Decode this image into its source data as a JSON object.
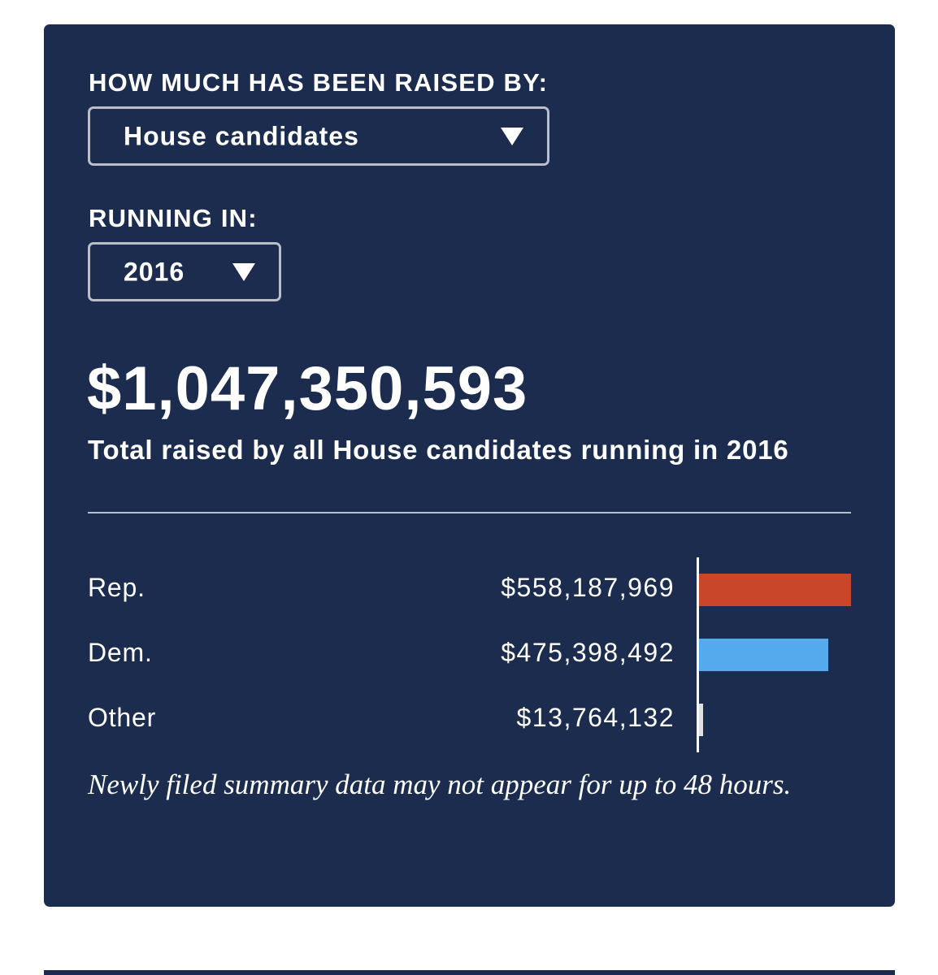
{
  "filter": {
    "raised_by_label": "HOW MUCH HAS BEEN RAISED BY:",
    "raised_by_value": "House candidates",
    "running_in_label": "RUNNING IN:",
    "running_in_value": "2016"
  },
  "summary": {
    "total": "$1,047,350,593",
    "subtitle": "Total raised by all House candidates running in 2016"
  },
  "chart_data": {
    "type": "bar",
    "orientation": "horizontal",
    "categories": [
      "Rep.",
      "Dem.",
      "Other"
    ],
    "values": [
      558187969,
      475398492,
      13764132
    ],
    "value_labels": [
      "$558,187,969",
      "$475,398,492",
      "$13,764,132"
    ],
    "colors": [
      "#c9462b",
      "#55aaee",
      "#e0e0e0"
    ]
  },
  "footnote": "Newly filed summary data may not appear for up to 48 hours."
}
